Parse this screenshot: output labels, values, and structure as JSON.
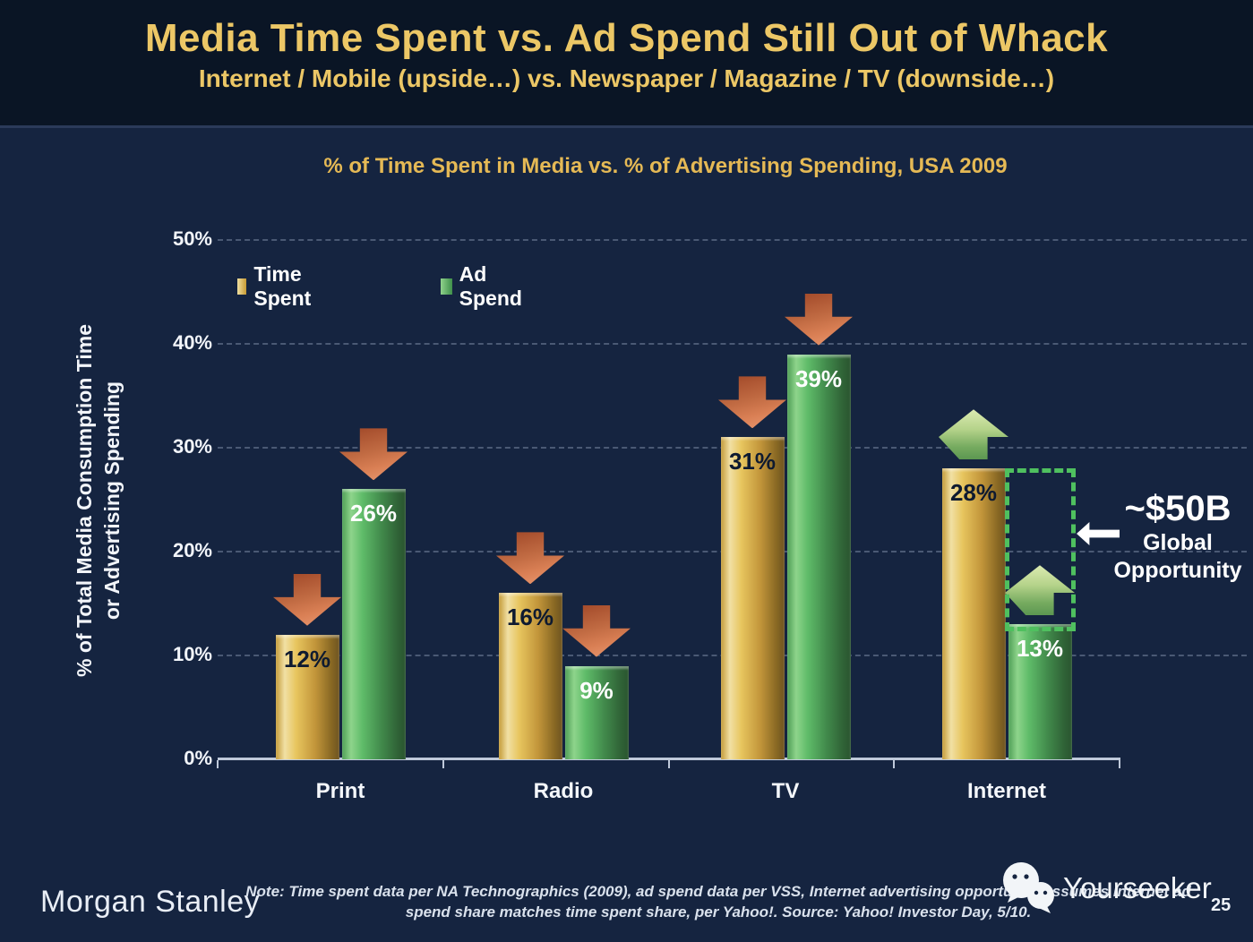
{
  "slide": {
    "title": "Media Time Spent vs. Ad Spend Still Out of Whack",
    "subtitle": "Internet / Mobile (upside…) vs. Newspaper / Magazine / TV (downside…)",
    "page_number": "25"
  },
  "chart": {
    "title": "% of Time Spent in Media vs. % of Advertising Spending, USA 2009",
    "y_axis_label_line1": "% of Total Media Consumption Time",
    "y_axis_label_line2": "or Advertising Spending",
    "legend": {
      "time_spent": "Time Spent",
      "ad_spend": "Ad Spend"
    }
  },
  "chart_data": {
    "type": "bar",
    "title": "% of Time Spent in Media vs. % of Advertising Spending, USA 2009",
    "categories": [
      "Print",
      "Radio",
      "TV",
      "Internet"
    ],
    "series": [
      {
        "name": "Time Spent",
        "color": "#e2bc55",
        "values": [
          12,
          16,
          31,
          28
        ],
        "trend_arrows": [
          "down",
          "down",
          "down",
          "up"
        ]
      },
      {
        "name": "Ad Spend",
        "color": "#57b263",
        "values": [
          26,
          9,
          39,
          13
        ],
        "trend_arrows": [
          "down",
          "down",
          "down",
          "up"
        ]
      }
    ],
    "unit": "%",
    "ylabel": "% of Total Media Consumption Time or Advertising Spending",
    "ylim": [
      0,
      50
    ],
    "ytick_step": 10,
    "grid": "horizontal-dashed",
    "legend_position": "top-left",
    "gap_annotation": {
      "category": "Internet",
      "series": "Ad Spend",
      "from": 13,
      "to": 28,
      "label": "~$50B Global Opportunity"
    }
  },
  "annotation": {
    "headline": "~$50B",
    "line1": "Global",
    "line2": "Opportunity"
  },
  "colors": {
    "background": "#152440",
    "header_background": "#0a1525",
    "title_gold": "#ecc766",
    "bar_gold": "#e2bc55",
    "bar_green": "#57b263",
    "arrow_down_red": "#d97f54",
    "arrow_up_green": "#b5d38a",
    "gap_border_green": "#4fc05f"
  },
  "footer": {
    "brand": "Morgan Stanley",
    "note_line1": "Note: Time spent data per NA Technographics (2009), ad spend data per VSS, Internet advertising opportunity assumes Internet ad",
    "note_line2": "spend share matches time spent share, per Yahoo!. Source: Yahoo! Investor Day, 5/10.",
    "watermark": "Yourseeker"
  }
}
